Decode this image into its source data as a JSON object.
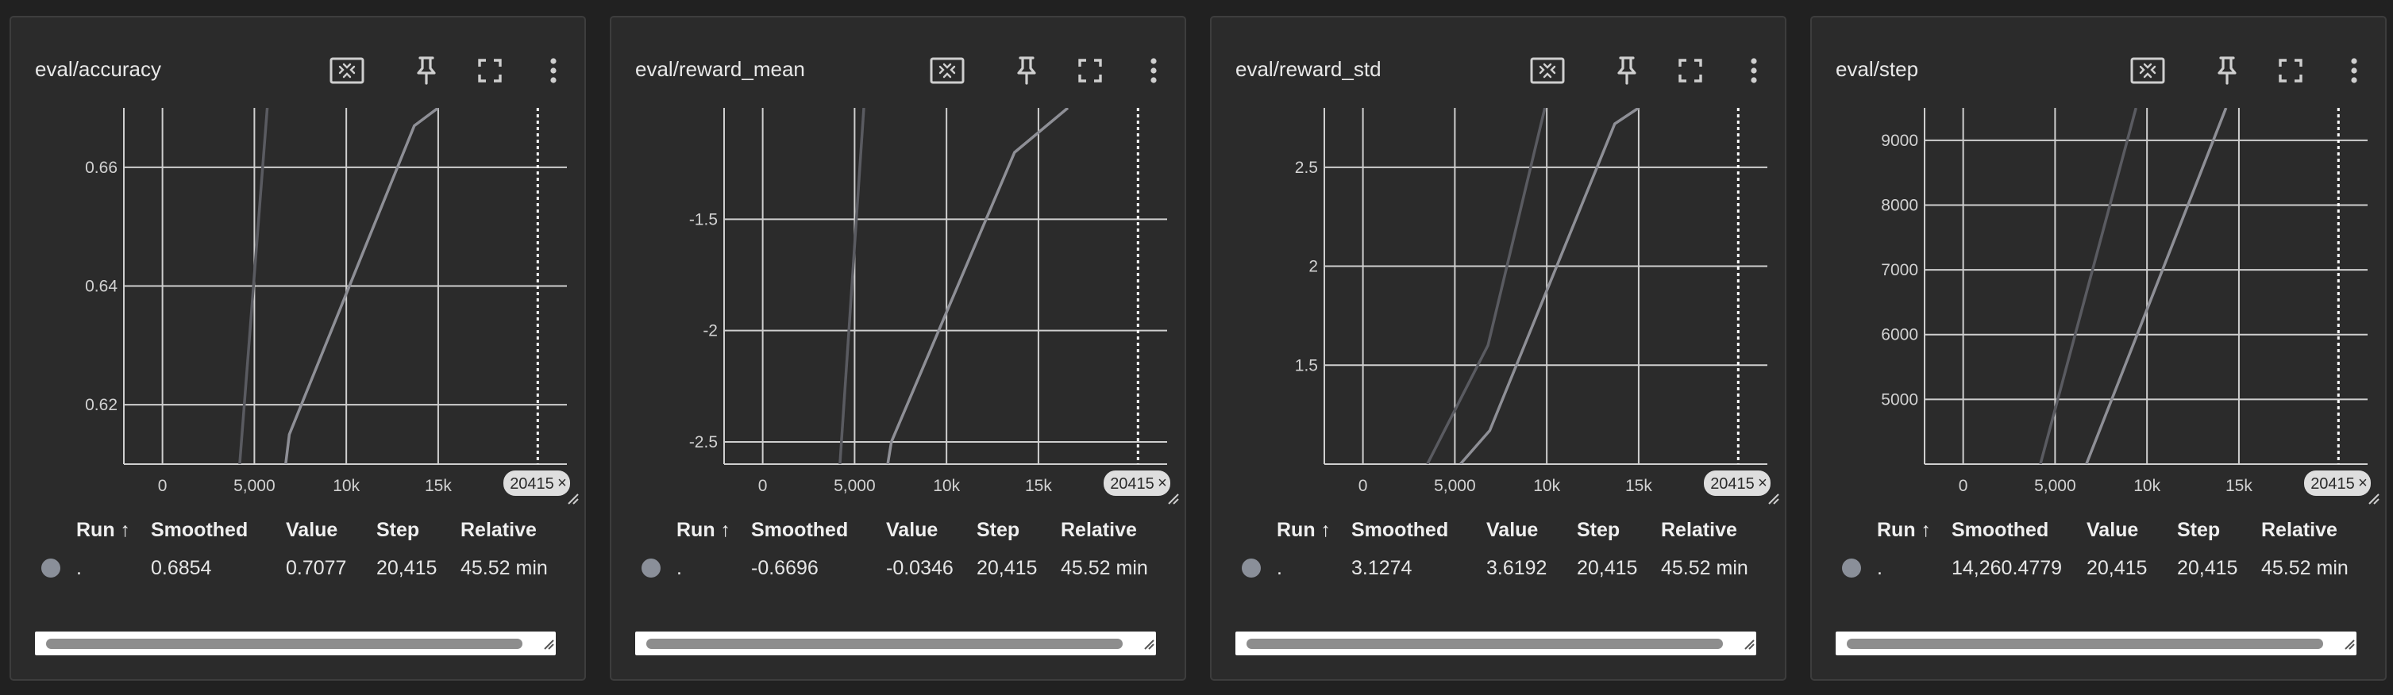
{
  "table_headers": {
    "run": "Run ↑",
    "smoothed": "Smoothed",
    "value": "Value",
    "step": "Step",
    "relative": "Relative"
  },
  "toolbar_icons": [
    "fit-domain-icon",
    "pin-icon",
    "fullscreen-icon",
    "more-vert-icon"
  ],
  "colors": {
    "background": "#212121",
    "card": "#2b2b2b",
    "grid": "#cfcfcf",
    "series_light": "#8e8f96",
    "series_dark": "#5a5b61",
    "run_dot": "#8a8f99"
  },
  "cards": [
    {
      "title": "eval/accuracy",
      "row": {
        "run": ".",
        "smoothed": "0.6854",
        "value": "0.7077",
        "step": "20,415",
        "relative": "45.52 min"
      },
      "chart_data": {
        "type": "line",
        "xlabel": "",
        "ylabel": "",
        "x_ticks": [
          0,
          5000,
          10000,
          15000
        ],
        "x_tick_labels": [
          "0",
          "5,000",
          "10k",
          "15k"
        ],
        "xlim": [
          -2100,
          22000
        ],
        "y_ticks": [
          0.62,
          0.64,
          0.66
        ],
        "y_tick_labels": [
          "0.62",
          "0.64",
          "0.66"
        ],
        "ylim": [
          0.61,
          0.67
        ],
        "cursor_step": 20415,
        "cursor_label": "20415",
        "grid": true,
        "series": [
          {
            "role": "smoothed",
            "x": [
              4200,
              5700
            ],
            "y": [
              0.61,
              0.67
            ]
          },
          {
            "role": "raw",
            "x": [
              6700,
              6900,
              13700,
              15000
            ],
            "y": [
              0.61,
              0.615,
              0.667,
              0.67
            ]
          }
        ]
      }
    },
    {
      "title": "eval/reward_mean",
      "row": {
        "run": ".",
        "smoothed": "-0.6696",
        "value": "-0.0346",
        "step": "20,415",
        "relative": "45.52 min"
      },
      "chart_data": {
        "type": "line",
        "xlabel": "",
        "ylabel": "",
        "x_ticks": [
          0,
          5000,
          10000,
          15000
        ],
        "x_tick_labels": [
          "0",
          "5,000",
          "10k",
          "15k"
        ],
        "xlim": [
          -2100,
          22000
        ],
        "y_ticks": [
          -2.5,
          -2,
          -1.5
        ],
        "y_tick_labels": [
          "-2.5",
          "-2",
          "-1.5"
        ],
        "ylim": [
          -2.6,
          -1.0
        ],
        "cursor_step": 20415,
        "cursor_label": "20415",
        "grid": true,
        "series": [
          {
            "role": "smoothed",
            "x": [
              4200,
              5500
            ],
            "y": [
              -2.6,
              -1.0
            ]
          },
          {
            "role": "raw",
            "x": [
              6800,
              7000,
              13700,
              16600
            ],
            "y": [
              -2.6,
              -2.5,
              -1.2,
              -1.0
            ]
          }
        ]
      }
    },
    {
      "title": "eval/reward_std",
      "row": {
        "run": ".",
        "smoothed": "3.1274",
        "value": "3.6192",
        "step": "20,415",
        "relative": "45.52 min"
      },
      "chart_data": {
        "type": "line",
        "xlabel": "",
        "ylabel": "",
        "x_ticks": [
          0,
          5000,
          10000,
          15000
        ],
        "x_tick_labels": [
          "0",
          "5,000",
          "10k",
          "15k"
        ],
        "xlim": [
          -2100,
          22000
        ],
        "y_ticks": [
          1.5,
          2,
          2.5
        ],
        "y_tick_labels": [
          "1.5",
          "2",
          "2.5"
        ],
        "ylim": [
          1.0,
          2.8
        ],
        "cursor_step": 20415,
        "cursor_label": "20415",
        "grid": true,
        "series": [
          {
            "role": "smoothed",
            "x": [
              3500,
              6800,
              9900
            ],
            "y": [
              1.0,
              1.6,
              2.8
            ]
          },
          {
            "role": "raw",
            "x": [
              5300,
              6900,
              13700,
              15000
            ],
            "y": [
              1.0,
              1.17,
              2.72,
              2.8
            ]
          }
        ]
      }
    },
    {
      "title": "eval/step",
      "row": {
        "run": ".",
        "smoothed": "14,260.4779",
        "value": "20,415",
        "step": "20,415",
        "relative": "45.52 min"
      },
      "chart_data": {
        "type": "line",
        "xlabel": "",
        "ylabel": "",
        "x_ticks": [
          0,
          5000,
          10000,
          15000
        ],
        "x_tick_labels": [
          "0",
          "5,000",
          "10k",
          "15k"
        ],
        "xlim": [
          -2100,
          22000
        ],
        "y_ticks": [
          5000,
          6000,
          7000,
          8000,
          9000
        ],
        "y_tick_labels": [
          "5000",
          "6000",
          "7000",
          "8000",
          "9000"
        ],
        "ylim": [
          4000,
          9500
        ],
        "cursor_step": 20415,
        "cursor_label": "20415",
        "grid": true,
        "series": [
          {
            "role": "smoothed",
            "x": [
              4200,
              9400
            ],
            "y": [
              4000,
              9500
            ]
          },
          {
            "role": "raw",
            "x": [
              6700,
              14300
            ],
            "y": [
              4000,
              9500
            ]
          }
        ]
      }
    }
  ]
}
